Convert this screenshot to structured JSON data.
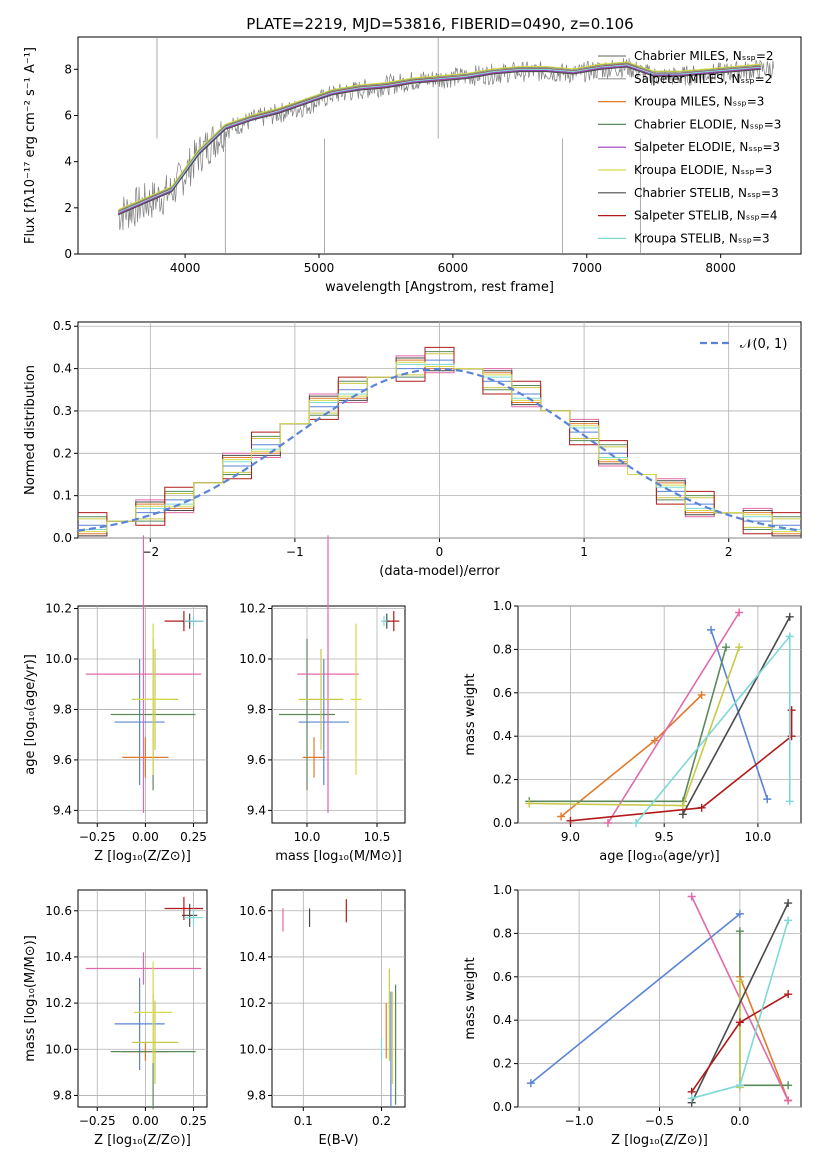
{
  "title": "PLATE=2219, MJD=53816, FIBERID=0490, z=0.106",
  "colors": {
    "spectrum": "#808080",
    "normal_curve": "#5b84d6",
    "model_colors": [
      "#808080",
      "#9a9a9a",
      "#e07b2c",
      "#5a8a5a",
      "#9b3fc2",
      "#d7d94a",
      "#4a4a4a",
      "#b01a1a",
      "#7fd8d8"
    ],
    "marker_colors": [
      "#5b84d6",
      "#e07b2c",
      "#5a8a5a",
      "#e06aa8",
      "#c9c94a",
      "#4a4a4a",
      "#b01a1a",
      "#7fd8d8",
      "#d7d94a"
    ]
  },
  "chart_data": [
    {
      "id": "spectrum",
      "type": "line",
      "xlabel": "wavelength [Angstrom, rest frame]",
      "ylabel": "Flux [fλ10⁻¹⁷ erg cm⁻² s⁻¹ A⁻¹]",
      "xlim": [
        3200,
        8600
      ],
      "ylim": [
        0,
        9.4
      ],
      "xticks": [
        "4000",
        "5000",
        "6000",
        "7000",
        "8000"
      ],
      "yticks": [
        "0",
        "2",
        "4",
        "6",
        "8"
      ],
      "x": [
        3500,
        3700,
        3900,
        4100,
        4300,
        4500,
        4700,
        4900,
        5100,
        5300,
        5500,
        5700,
        5900,
        6100,
        6300,
        6500,
        6700,
        6900,
        7100,
        7300,
        7500,
        7700,
        7900,
        8100,
        8300
      ],
      "series": [
        {
          "name": "data",
          "values": [
            1.7,
            2.2,
            2.7,
            4.3,
            5.4,
            5.8,
            6.1,
            6.4,
            6.9,
            7.1,
            7.3,
            7.5,
            7.6,
            7.7,
            7.8,
            7.9,
            7.9,
            7.8,
            8.0,
            8.1,
            7.7,
            7.7,
            7.8,
            7.9,
            8.0
          ]
        },
        {
          "name": "model",
          "values": [
            1.8,
            2.3,
            2.8,
            4.4,
            5.5,
            5.9,
            6.2,
            6.6,
            7.0,
            7.2,
            7.3,
            7.5,
            7.6,
            7.7,
            7.9,
            8.0,
            8.0,
            7.9,
            8.1,
            8.2,
            7.8,
            7.8,
            7.9,
            8.0,
            8.1
          ]
        }
      ],
      "legend": [
        "Chabrier MILES, Nₛₛₚ=2",
        "Salpeter MILES, Nₛₛₚ=2",
        "Kroupa MILES, Nₛₛₚ=3",
        "Chabrier ELODIE, Nₛₛₚ=3",
        "Salpeter ELODIE, Nₛₛₚ=3",
        "Kroupa ELODIE, Nₛₛₚ=3",
        "Chabrier STELIB, Nₛₛₚ=3",
        "Salpeter STELIB, Nₛₛₚ=4",
        "Kroupa STELIB, Nₛₛₚ=3"
      ],
      "legend_placement": "right"
    },
    {
      "id": "residuals",
      "type": "line",
      "xlabel": "(data-model)/error",
      "ylabel": "Normed distribution",
      "xlim": [
        -2.5,
        2.5
      ],
      "ylim": [
        0,
        0.51
      ],
      "xticks": [
        "−2",
        "−1",
        "0",
        "1",
        "2"
      ],
      "yticks": [
        "0.0",
        "0.1",
        "0.2",
        "0.3",
        "0.4",
        "0.5"
      ],
      "grid": true,
      "legend": [
        "𝒩(0, 1)"
      ],
      "legend_placement": "top-right",
      "bin_centers": [
        -2.4,
        -2.2,
        -2.0,
        -1.8,
        -1.6,
        -1.4,
        -1.2,
        -1.0,
        -0.8,
        -0.6,
        -0.4,
        -0.2,
        0.0,
        0.2,
        0.4,
        0.6,
        0.8,
        1.0,
        1.2,
        1.4,
        1.6,
        1.8,
        2.0,
        2.2,
        2.4
      ],
      "series": [
        {
          "name": "hist",
          "values": [
            0.03,
            0.04,
            0.06,
            0.09,
            0.13,
            0.17,
            0.22,
            0.27,
            0.31,
            0.35,
            0.38,
            0.4,
            0.42,
            0.4,
            0.37,
            0.34,
            0.3,
            0.25,
            0.2,
            0.15,
            0.11,
            0.08,
            0.06,
            0.04,
            0.03
          ]
        }
      ]
    },
    {
      "id": "age-vs-Z",
      "type": "scatter",
      "xlabel": "Z [log₁₀(Z/Z⊙)]",
      "ylabel": "age  [log₁₀(age/yr)]",
      "xticks": [
        "−0.25",
        "0.00",
        "0.25"
      ],
      "yticks": [
        "9.4",
        "9.6",
        "9.8",
        "10.0",
        "10.2"
      ],
      "xlim": [
        -0.35,
        0.32
      ],
      "ylim": [
        9.35,
        10.21
      ]
    },
    {
      "id": "age-vs-mass",
      "type": "scatter",
      "xlabel": "mass [log₁₀(M/M⊙)]",
      "xticks": [
        "10.0",
        "10.5"
      ],
      "yticks": [
        "9.4",
        "9.6",
        "9.8",
        "10.0",
        "10.2"
      ],
      "xlim": [
        9.75,
        10.7
      ],
      "ylim": [
        9.35,
        10.21
      ]
    },
    {
      "id": "weight-vs-age",
      "type": "line",
      "xlabel": "age  [log₁₀(age/yr)]",
      "ylabel": "mass weight",
      "xticks": [
        "9.0",
        "9.5",
        "10.0"
      ],
      "yticks": [
        "0.0",
        "0.2",
        "0.4",
        "0.6",
        "0.8",
        "1.0"
      ],
      "xlim": [
        8.72,
        10.23
      ],
      "ylim": [
        0,
        1.0
      ],
      "grid": true
    },
    {
      "id": "mass-vs-Z",
      "type": "scatter",
      "xlabel": "Z [log₁₀(Z/Z⊙)]",
      "ylabel": "mass [log₁₀(M/M⊙)]",
      "xticks": [
        "−0.25",
        "0.00",
        "0.25"
      ],
      "yticks": [
        "9.8",
        "10.0",
        "10.2",
        "10.4",
        "10.6"
      ],
      "xlim": [
        -0.35,
        0.32
      ],
      "ylim": [
        9.75,
        10.69
      ]
    },
    {
      "id": "mass-vs-ebv",
      "type": "scatter",
      "xlabel": "E(B-V)",
      "xticks": [
        "0.1",
        "0.2"
      ],
      "yticks": [
        "9.8",
        "10.0",
        "10.2",
        "10.4",
        "10.6"
      ],
      "xlim": [
        0.06,
        0.23
      ],
      "ylim": [
        9.75,
        10.69
      ]
    },
    {
      "id": "weight-vs-Z",
      "type": "line",
      "xlabel": "Z [log₁₀(Z/Z⊙)]",
      "ylabel": "mass weight",
      "xticks": [
        "−1.0",
        "−0.5",
        "0.0"
      ],
      "yticks": [
        "0.0",
        "0.2",
        "0.4",
        "0.6",
        "0.8",
        "1.0"
      ],
      "xlim": [
        -1.38,
        0.38
      ],
      "ylim": [
        0,
        1.0
      ],
      "grid": true
    }
  ]
}
